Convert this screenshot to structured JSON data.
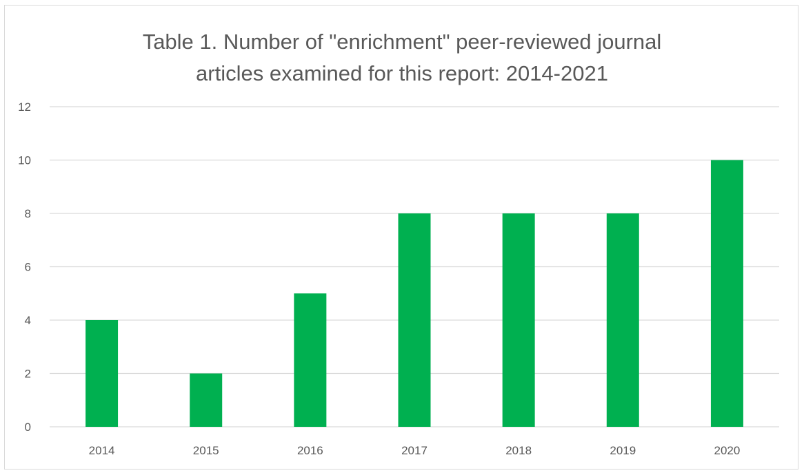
{
  "colors": {
    "bar": "#00b050",
    "gridline": "#d9d9d9",
    "text": "#595959",
    "frame": "#d9d9d9"
  },
  "chart_data": {
    "type": "bar",
    "title_lines": [
      "Table 1. Number of \"enrichment\"  peer-reviewed  journal",
      "articles examined for this report:  2014-2021"
    ],
    "xlabel": "",
    "ylabel": "",
    "categories": [
      "2014",
      "2015",
      "2016",
      "2017",
      "2018",
      "2019",
      "2020"
    ],
    "values": [
      4,
      2,
      5,
      8,
      8,
      8,
      10
    ],
    "ylim": [
      0,
      12
    ],
    "yticks": [
      "0",
      "2",
      "4",
      "6",
      "8",
      "10",
      "12"
    ],
    "grid": true,
    "legend": "none"
  }
}
